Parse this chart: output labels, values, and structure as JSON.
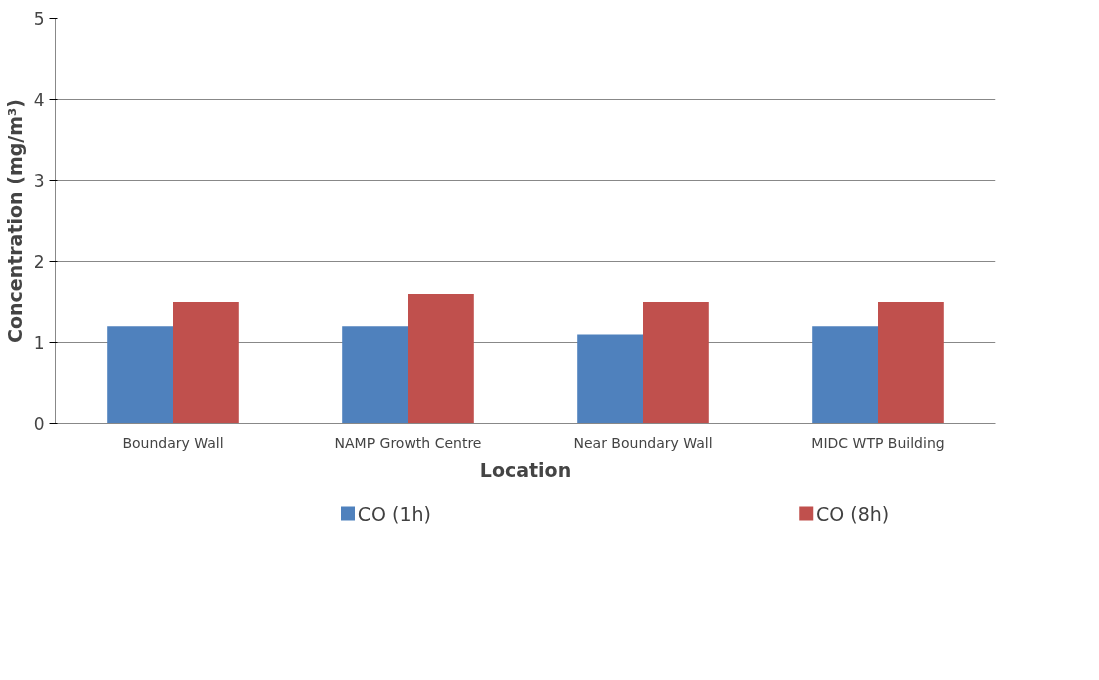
{
  "chart_data": {
    "type": "bar",
    "xlabel": "Location",
    "ylabel": "Concentration (mg/m³)",
    "categories": [
      "Boundary Wall",
      "NAMP Growth Centre",
      "Near Boundary Wall",
      "MIDC WTP Building"
    ],
    "series": [
      {
        "name": "CO (1h)",
        "color": "#4f81bd",
        "values": [
          1.2,
          1.2,
          1.1,
          1.2
        ]
      },
      {
        "name": "CO (8h)",
        "color": "#c0504d",
        "values": [
          1.5,
          1.6,
          1.5,
          1.5
        ]
      }
    ],
    "ylim": [
      0,
      5
    ],
    "yticks": [
      0,
      1,
      2,
      3,
      4,
      5
    ],
    "grid": "y",
    "legend": "bottom"
  }
}
